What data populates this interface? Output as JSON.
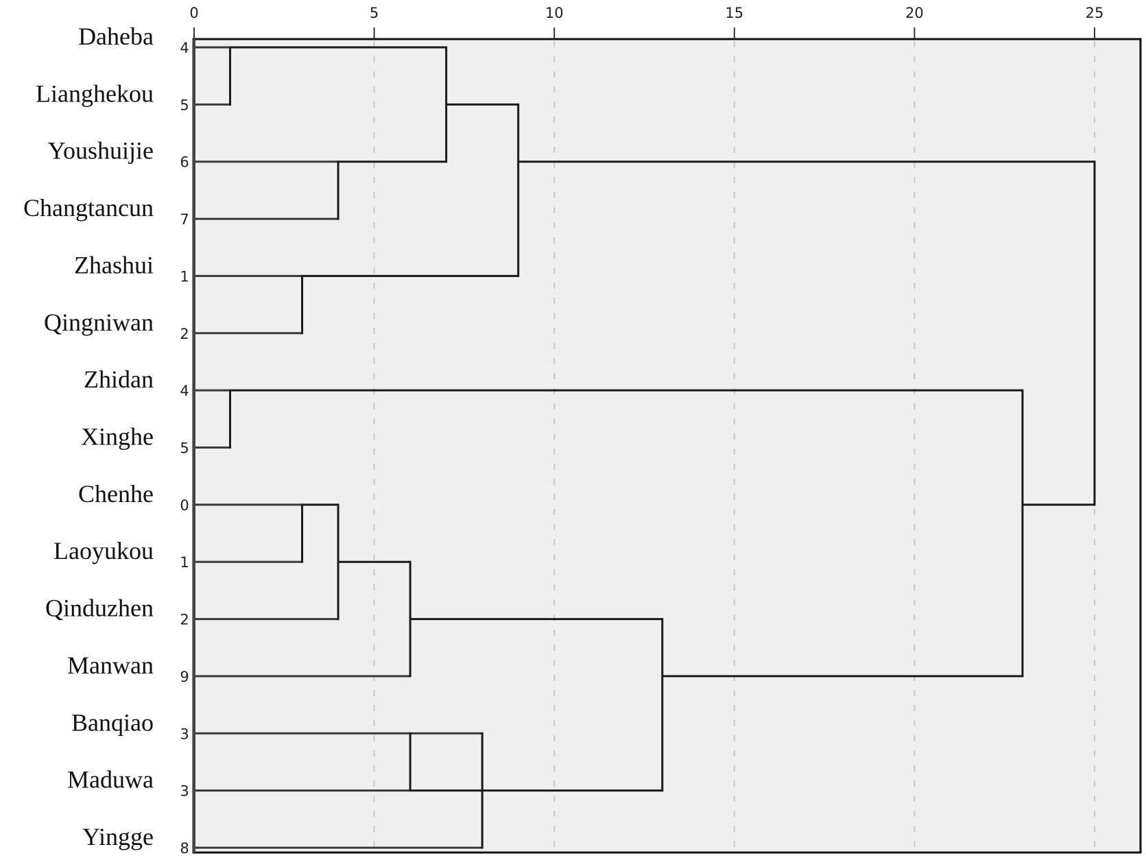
{
  "chart_data": {
    "type": "dendrogram",
    "title": "",
    "xlabel": "",
    "ylabel": "",
    "xlim": [
      0,
      26.5
    ],
    "x_ticks": [
      0,
      5,
      10,
      15,
      20,
      25
    ],
    "x_tick_labels": [
      "0",
      "5",
      "10",
      "15",
      "20",
      "25"
    ],
    "grid": "vertical dashed at major ticks",
    "background": "#efefef",
    "leaves": [
      {
        "name": "Daheba",
        "num": "4",
        "parent_height": 1
      },
      {
        "name": "Lianghekou",
        "num": "5",
        "parent_height": 1
      },
      {
        "name": "Youshuijie",
        "num": "6",
        "parent_height": 4
      },
      {
        "name": "Changtancun",
        "num": "7",
        "parent_height": 4
      },
      {
        "name": "Zhashui",
        "num": "1",
        "parent_height": 3
      },
      {
        "name": "Qingniwan",
        "num": "2",
        "parent_height": 3
      },
      {
        "name": "Zhidan",
        "num": "4",
        "parent_height": 1
      },
      {
        "name": "Xinghe",
        "num": "5",
        "parent_height": 1
      },
      {
        "name": "Chenhe",
        "num": "0",
        "parent_height": 3
      },
      {
        "name": "Laoyukou",
        "num": "1",
        "parent_height": 3
      },
      {
        "name": "Qinduzhen",
        "num": "2",
        "parent_height": 4
      },
      {
        "name": "Manwan",
        "num": "9",
        "parent_height": 6
      },
      {
        "name": "Banqiao",
        "num": "3",
        "parent_height": 8
      },
      {
        "name": "Maduwa",
        "num": "3",
        "parent_height": 6
      },
      {
        "name": "Yingge",
        "num": "8",
        "parent_height": 8
      }
    ],
    "merges": [
      {
        "height": 1,
        "from_leaf": 0,
        "to_leaf": 1,
        "out_leaf": 0,
        "parent_height": 7
      },
      {
        "height": 4,
        "from_leaf": 2,
        "to_leaf": 3,
        "out_leaf": 2,
        "parent_height": 7
      },
      {
        "height": 7,
        "from_leaf": 0,
        "to_leaf": 2,
        "out_leaf": 1,
        "parent_height": 9
      },
      {
        "height": 3,
        "from_leaf": 4,
        "to_leaf": 5,
        "out_leaf": 4,
        "parent_height": 9
      },
      {
        "height": 9,
        "from_leaf": 1,
        "to_leaf": 4,
        "out_leaf": 2,
        "parent_height": 25
      },
      {
        "height": 1,
        "from_leaf": 6,
        "to_leaf": 7,
        "out_leaf": 6,
        "parent_height": 23
      },
      {
        "height": 3,
        "from_leaf": 8,
        "to_leaf": 9,
        "out_leaf": 8,
        "parent_height": 4
      },
      {
        "height": 4,
        "from_leaf": 8,
        "to_leaf": 10,
        "out_leaf": 9,
        "parent_height": 6
      },
      {
        "height": 6,
        "from_leaf": 9,
        "to_leaf": 11,
        "out_leaf": 10,
        "parent_height": 13
      },
      {
        "height": 6,
        "from_leaf": 12,
        "to_leaf": 13,
        "out_leaf": 13,
        "parent_height": 8
      },
      {
        "height": 8,
        "from_leaf": 12,
        "to_leaf": 14,
        "out_leaf": 13,
        "parent_height": 13
      },
      {
        "height": 13,
        "from_leaf": 10,
        "to_leaf": 13,
        "out_leaf": 11,
        "parent_height": 23
      },
      {
        "height": 23,
        "from_leaf": 6,
        "to_leaf": 11,
        "out_leaf": 8,
        "parent_height": 25
      },
      {
        "height": 25,
        "from_leaf": 2,
        "to_leaf": 8,
        "out_leaf": null,
        "parent_height": null
      }
    ]
  }
}
